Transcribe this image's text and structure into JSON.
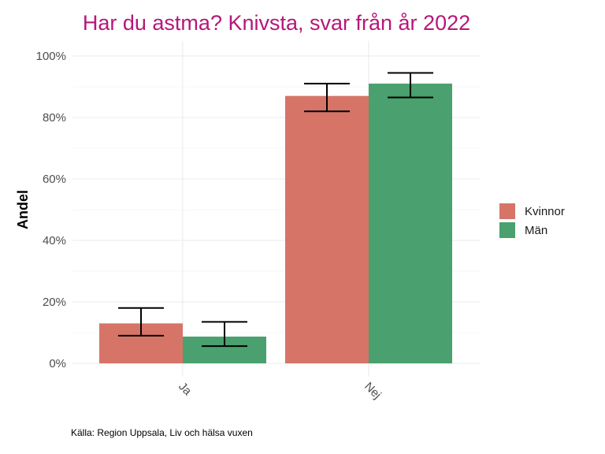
{
  "colors": {
    "title": "#b5177a",
    "grid_major": "#ebebeb",
    "grid_minor": "#f4f4f4",
    "error_bar": "#000000"
  },
  "caption": "Källa: Region Uppsala, Liv och hälsa vuxen",
  "chart_data": {
    "type": "bar",
    "title": "Har du astma? Knivsta, svar från år 2022",
    "xlabel": "",
    "ylabel": "Andel",
    "categories": [
      "Ja",
      "Nej"
    ],
    "ylim": [
      0,
      100
    ],
    "yticks": [
      "0%",
      "20%",
      "40%",
      "60%",
      "80%",
      "100%"
    ],
    "grid": true,
    "legend_position": "right",
    "series": [
      {
        "name": "Kvinnor",
        "color": "#d67567",
        "values": [
          13,
          87
        ],
        "error_low": [
          9,
          82
        ],
        "error_high": [
          18,
          91
        ]
      },
      {
        "name": "Män",
        "color": "#4aa06e",
        "values": [
          8.7,
          91
        ],
        "error_low": [
          5.6,
          86.5
        ],
        "error_high": [
          13.5,
          94.5
        ]
      }
    ]
  }
}
